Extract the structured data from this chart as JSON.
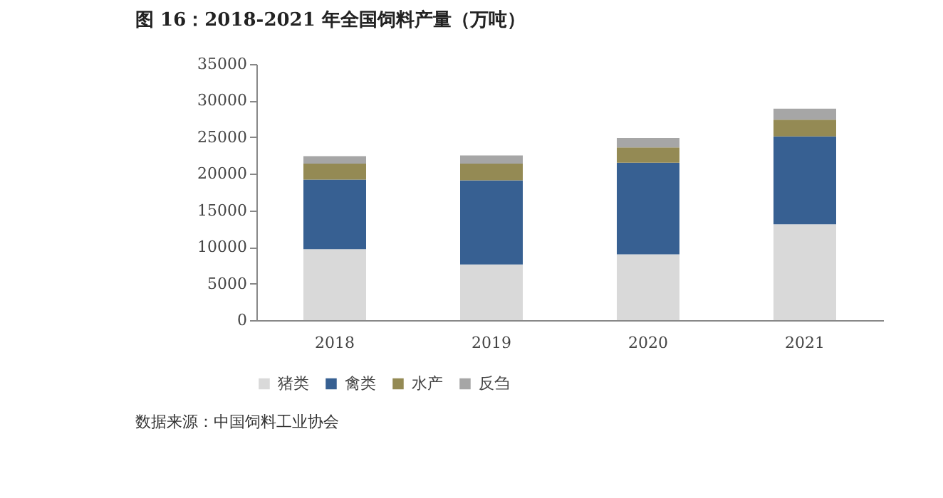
{
  "chart_data": {
    "type": "bar",
    "stacked": true,
    "title": "图 16：2018-2021 年全国饲料产量（万吨）",
    "categories": [
      "2018",
      "2019",
      "2020",
      "2021"
    ],
    "series": [
      {
        "name": "猪类",
        "color": "#d9d9d9",
        "values": [
          9700,
          7600,
          9000,
          13100
        ]
      },
      {
        "name": "禽类",
        "color": "#376092",
        "values": [
          9500,
          11500,
          12500,
          12000
        ]
      },
      {
        "name": "水产",
        "color": "#948a54",
        "values": [
          2200,
          2300,
          2100,
          2300
        ]
      },
      {
        "name": "反刍",
        "color": "#a6a6a6",
        "values": [
          1000,
          1100,
          1300,
          1500
        ]
      }
    ],
    "ylim": [
      0,
      35000
    ],
    "yticks": [
      0,
      5000,
      10000,
      15000,
      20000,
      25000,
      30000,
      35000
    ],
    "grid": false,
    "legend": "bottom",
    "annotations": [
      "数据来源：中国饲料工业协会"
    ]
  }
}
